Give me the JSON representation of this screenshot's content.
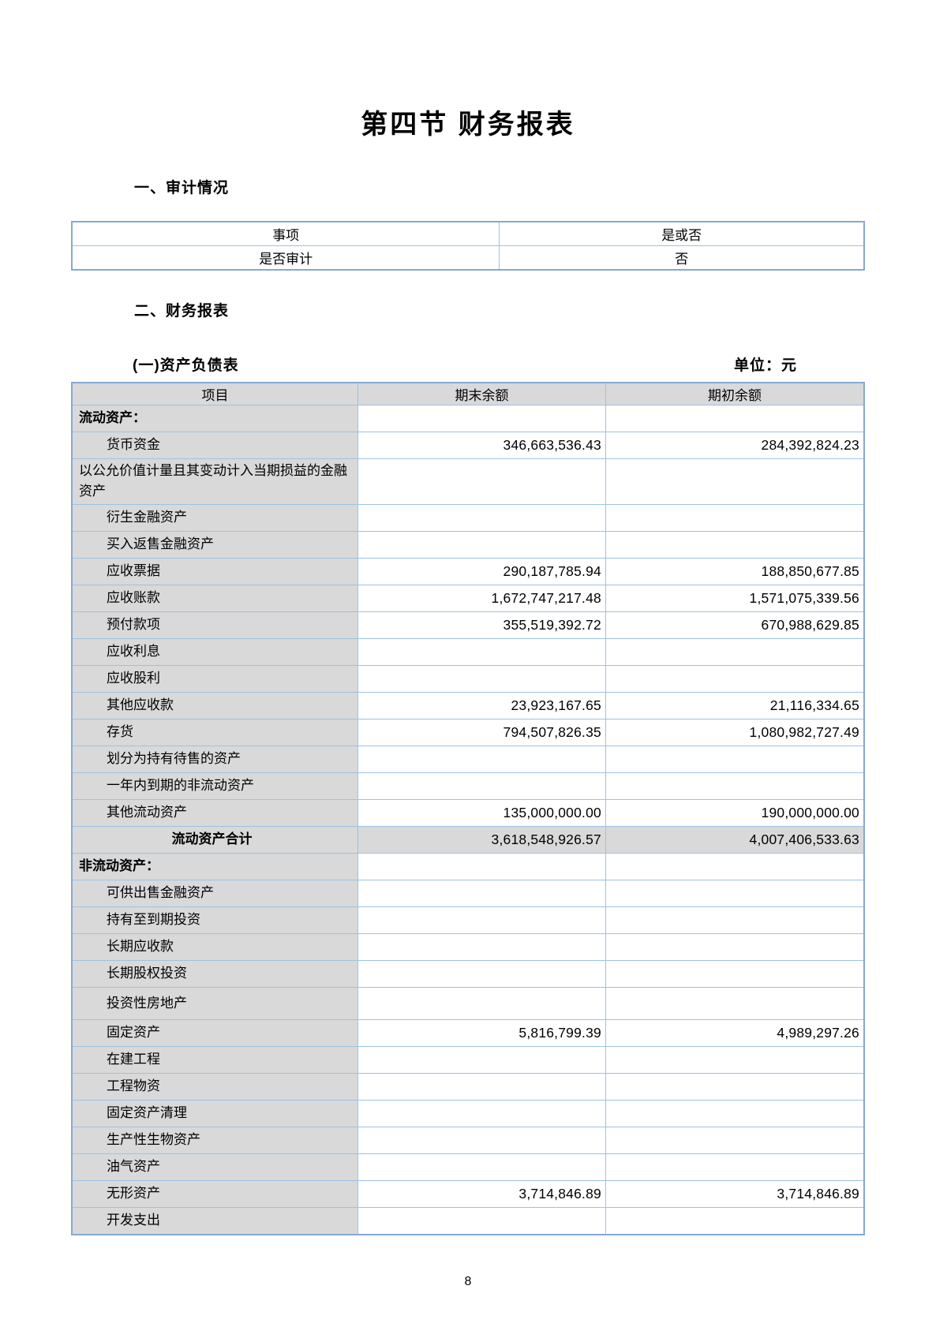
{
  "page": {
    "title": "第四节 财务报表",
    "page_number": "8"
  },
  "colors": {
    "table_border_blue": "#9cc2e5",
    "table_outer_border_blue": "#85a9d3",
    "header_gray": "#d9d9d9"
  },
  "audit": {
    "heading": "一、审计情况",
    "table": {
      "columns": [
        "事项",
        "是或否"
      ],
      "rows": [
        [
          "是否审计",
          "否"
        ]
      ]
    }
  },
  "statements": {
    "heading": "二、财务报表",
    "balance_sheet": {
      "title": "(一)资产负债表",
      "unit": "单位：元",
      "columns": [
        "项目",
        "期末余额",
        "期初余额"
      ],
      "rows": [
        {
          "label": "流动资产：",
          "end": "",
          "begin": "",
          "style": "section"
        },
        {
          "label": "货币资金",
          "end": "346,663,536.43",
          "begin": "284,392,824.23",
          "style": "item"
        },
        {
          "label": "以公允价值计量且其变动计入当期损益的金融资产",
          "end": "",
          "begin": "",
          "style": "flush"
        },
        {
          "label": "衍生金融资产",
          "end": "",
          "begin": "",
          "style": "item"
        },
        {
          "label": "买入返售金融资产",
          "end": "",
          "begin": "",
          "style": "item"
        },
        {
          "label": "应收票据",
          "end": "290,187,785.94",
          "begin": "188,850,677.85",
          "style": "item"
        },
        {
          "label": "应收账款",
          "end": "1,672,747,217.48",
          "begin": "1,571,075,339.56",
          "style": "item"
        },
        {
          "label": "预付款项",
          "end": "355,519,392.72",
          "begin": "670,988,629.85",
          "style": "item"
        },
        {
          "label": "应收利息",
          "end": "",
          "begin": "",
          "style": "item"
        },
        {
          "label": "应收股利",
          "end": "",
          "begin": "",
          "style": "item"
        },
        {
          "label": "其他应收款",
          "end": "23,923,167.65",
          "begin": "21,116,334.65",
          "style": "item"
        },
        {
          "label": "存货",
          "end": "794,507,826.35",
          "begin": "1,080,982,727.49",
          "style": "item"
        },
        {
          "label": "划分为持有待售的资产",
          "end": "",
          "begin": "",
          "style": "item"
        },
        {
          "label": "一年内到期的非流动资产",
          "end": "",
          "begin": "",
          "style": "item"
        },
        {
          "label": "其他流动资产",
          "end": "135,000,000.00",
          "begin": "190,000,000.00",
          "style": "item"
        },
        {
          "label": "流动资产合计",
          "end": "3,618,548,926.57",
          "begin": "4,007,406,533.63",
          "style": "total"
        },
        {
          "label": "非流动资产：",
          "end": "",
          "begin": "",
          "style": "section"
        },
        {
          "label": "可供出售金融资产",
          "end": "",
          "begin": "",
          "style": "item"
        },
        {
          "label": "持有至到期投资",
          "end": "",
          "begin": "",
          "style": "item"
        },
        {
          "label": "长期应收款",
          "end": "",
          "begin": "",
          "style": "item"
        },
        {
          "label": "长期股权投资",
          "end": "",
          "begin": "",
          "style": "item"
        },
        {
          "label": "投资性房地产",
          "end": "",
          "begin": "",
          "style": "item",
          "tall": true
        },
        {
          "label": "固定资产",
          "end": "5,816,799.39",
          "begin": "4,989,297.26",
          "style": "item"
        },
        {
          "label": "在建工程",
          "end": "",
          "begin": "",
          "style": "item"
        },
        {
          "label": "工程物资",
          "end": "",
          "begin": "",
          "style": "item"
        },
        {
          "label": "固定资产清理",
          "end": "",
          "begin": "",
          "style": "item"
        },
        {
          "label": "生产性生物资产",
          "end": "",
          "begin": "",
          "style": "item"
        },
        {
          "label": "油气资产",
          "end": "",
          "begin": "",
          "style": "item"
        },
        {
          "label": "无形资产",
          "end": "3,714,846.89",
          "begin": "3,714,846.89",
          "style": "item"
        },
        {
          "label": "开发支出",
          "end": "",
          "begin": "",
          "style": "item"
        }
      ]
    }
  }
}
